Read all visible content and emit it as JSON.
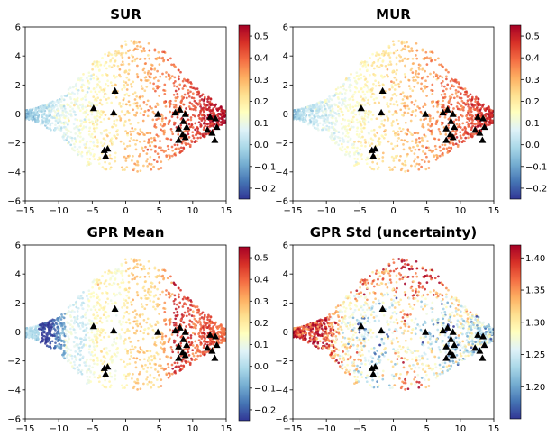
{
  "chart_data": [
    {
      "type": "scatter",
      "title": "SUR",
      "xlim": [
        -15,
        15
      ],
      "ylim": [
        -6,
        6
      ],
      "xticks": [
        "−15",
        "−10",
        "−5",
        "0",
        "5",
        "10",
        "15"
      ],
      "yticks": [
        "−6",
        "−4",
        "−2",
        "0",
        "2",
        "4",
        "6"
      ],
      "colorbar": {
        "range": [
          -0.25,
          0.55
        ],
        "colormap": "RdYlBu_r",
        "ticks": [
          "0.5",
          "0.4",
          "0.3",
          "0.2",
          "0.1",
          "0.0",
          "−0.1",
          "−0.2"
        ],
        "tick_values": [
          0.5,
          0.4,
          0.3,
          0.2,
          0.1,
          0.0,
          -0.1,
          -0.2
        ]
      },
      "color_trend": "increasing left to right",
      "markers": {
        "shape": "triangle",
        "color": "#000000"
      }
    },
    {
      "type": "scatter",
      "title": "MUR",
      "xlim": [
        -15,
        15
      ],
      "ylim": [
        -6,
        6
      ],
      "xticks": [
        "−15",
        "−10",
        "−5",
        "0",
        "5",
        "10",
        "15"
      ],
      "yticks": [
        "−6",
        "−4",
        "−2",
        "0",
        "2",
        "4",
        "6"
      ],
      "colorbar": {
        "range": [
          -0.25,
          0.55
        ],
        "colormap": "RdYlBu_r",
        "ticks": [
          "0.5",
          "0.4",
          "0.3",
          "0.2",
          "0.1",
          "0.0",
          "−0.1",
          "−0.2"
        ],
        "tick_values": [
          0.5,
          0.4,
          0.3,
          0.2,
          0.1,
          0.0,
          -0.1,
          -0.2
        ]
      },
      "color_trend": "increasing left to right",
      "markers": {
        "shape": "triangle",
        "color": "#000000"
      }
    },
    {
      "type": "scatter",
      "title": "GPR Mean",
      "xlim": [
        -15,
        15
      ],
      "ylim": [
        -6,
        6
      ],
      "xticks": [
        "−15",
        "−10",
        "−5",
        "0",
        "5",
        "10",
        "15"
      ],
      "yticks": [
        "−6",
        "−4",
        "−2",
        "0",
        "2",
        "4",
        "6"
      ],
      "colorbar": {
        "range": [
          -0.25,
          0.55
        ],
        "colormap": "RdYlBu_r",
        "ticks": [
          "0.5",
          "0.4",
          "0.3",
          "0.2",
          "0.1",
          "0.0",
          "−0.1",
          "−0.2"
        ],
        "tick_values": [
          0.5,
          0.4,
          0.3,
          0.2,
          0.1,
          0.0,
          -0.1,
          -0.2
        ]
      },
      "color_trend": "increasing left to right, banded",
      "markers": {
        "shape": "triangle",
        "color": "#000000"
      }
    },
    {
      "type": "scatter",
      "title": "GPR Std (uncertainty)",
      "xlim": [
        -15,
        15
      ],
      "ylim": [
        -6,
        6
      ],
      "xticks": [
        "−15",
        "−10",
        "−5",
        "0",
        "5",
        "10",
        "15"
      ],
      "yticks": [
        "−6",
        "−4",
        "−2",
        "0",
        "2",
        "4",
        "6"
      ],
      "colorbar": {
        "range": [
          1.15,
          1.42
        ],
        "colormap": "RdYlBu_r",
        "ticks": [
          "1.40",
          "1.35",
          "1.30",
          "1.25",
          "1.20"
        ],
        "tick_values": [
          1.4,
          1.35,
          1.3,
          1.25,
          1.2
        ]
      },
      "color_trend": "low near triangle markers, high elsewhere",
      "markers": {
        "shape": "triangle",
        "color": "#000000"
      }
    }
  ],
  "triangles": [
    [
      -4.8,
      0.4
    ],
    [
      -1.6,
      1.6
    ],
    [
      -1.8,
      0.1
    ],
    [
      -3.2,
      -2.5
    ],
    [
      -2.7,
      -2.4
    ],
    [
      -3.0,
      -2.9
    ],
    [
      4.8,
      0.0
    ],
    [
      7.4,
      0.1
    ],
    [
      8.1,
      0.3
    ],
    [
      8.9,
      0.0
    ],
    [
      8.6,
      -0.5
    ],
    [
      9.1,
      -0.9
    ],
    [
      7.9,
      -1.0
    ],
    [
      8.5,
      -1.4
    ],
    [
      7.9,
      -1.8
    ],
    [
      8.9,
      -1.6
    ],
    [
      12.6,
      -0.2
    ],
    [
      13.4,
      -0.3
    ],
    [
      12.2,
      -1.1
    ],
    [
      12.9,
      -1.3
    ],
    [
      13.3,
      -1.8
    ],
    [
      13.6,
      -0.9
    ]
  ]
}
